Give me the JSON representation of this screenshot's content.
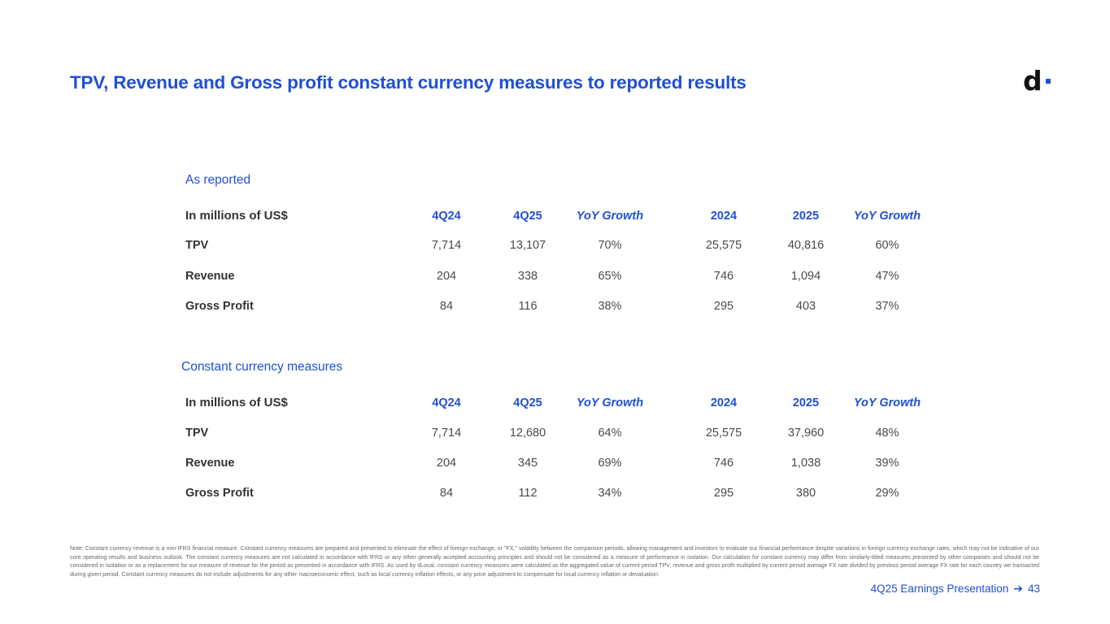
{
  "title": "TPV, Revenue and Gross profit constant currency measures to reported results",
  "logo": {
    "letter": "d"
  },
  "columns": [
    "4Q24",
    "4Q25",
    "YoY Growth",
    "2024",
    "2025",
    "YoY Growth"
  ],
  "tables": [
    {
      "section_label": "As reported",
      "row_header": "In millions of US$",
      "rows": [
        {
          "label": "TPV",
          "values": [
            "7,714",
            "13,107",
            "70%",
            "25,575",
            "40,816",
            "60%"
          ]
        },
        {
          "label": "Revenue",
          "values": [
            "204",
            "338",
            "65%",
            "746",
            "1,094",
            "47%"
          ]
        },
        {
          "label": "Gross Profit",
          "values": [
            "84",
            "116",
            "38%",
            "295",
            "403",
            "37%"
          ]
        }
      ]
    },
    {
      "section_label": "Constant currency measures",
      "row_header": "In millions of US$",
      "rows": [
        {
          "label": "TPV",
          "values": [
            "7,714",
            "12,680",
            "64%",
            "25,575",
            "37,960",
            "48%"
          ]
        },
        {
          "label": "Revenue",
          "values": [
            "204",
            "345",
            "69%",
            "746",
            "1,038",
            "39%"
          ]
        },
        {
          "label": "Gross Profit",
          "values": [
            "84",
            "112",
            "34%",
            "295",
            "380",
            "29%"
          ]
        }
      ]
    }
  ],
  "note": "Note: Constant currency revenue is a non-IFRS financial measure. Constant currency measures are prepared and presented to eliminate the effect of foreign exchange, or \"FX,\" volatility between the comparison periods, allowing management and investors to evaluate our financial performance despite variations in foreign currency exchange rates, which may not be indicative of our core operating results and business outlook. The constant currency measures are not calculated in accordance with IFRS or any other generally accepted accounting principles and should not be considered as a measure of performance in isolation. Our calculation for constant currency may differ from similarly-titled measures presented by other companies and should not be considered in isolation or as a replacement for our measure of revenue for the period as presented in accordance with IFRS. As used by dLocal, constant currency measures were calculated as the aggregated value of current period TPV, revenue and gross profit multiplied by current period average FX rate divided by previous period average FX rate for each country we transacted during given period. Constant currency measures do not include adjustments for any other macroeconomic effect, such as local currency inflation effects, or any price adjustment to compensate for local currency inflation or devaluation.",
  "footer": {
    "text": "4Q25 Earnings Presentation",
    "page": "43"
  }
}
